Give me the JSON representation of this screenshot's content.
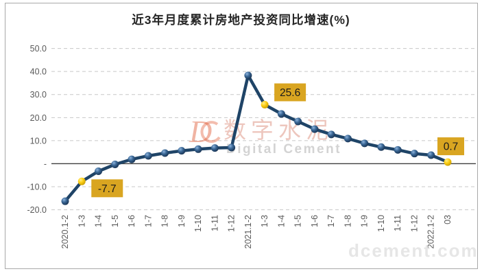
{
  "title": "近3年月度累计房地产投资同比增速(%)",
  "watermark": {
    "logo": "D",
    "cn": "数字水泥",
    "en": "Digital Cement",
    "site": "dcement.com"
  },
  "chart_data": {
    "type": "line",
    "title": "近3年月度累计房地产投资同比增速(%)",
    "xlabel": "",
    "ylabel": "",
    "categories": [
      "2020.1-2",
      "1-3",
      "1-4",
      "1-5",
      "1-6",
      "1-7",
      "1-8",
      "1-9",
      "1-10",
      "1-11",
      "1-12",
      "2021.1-2",
      "1-3",
      "1-4",
      "1-5",
      "1-6",
      "1-7",
      "1-8",
      "1-9",
      "1-10",
      "1-11",
      "1-12",
      "2022.1-2",
      "03"
    ],
    "values": [
      -16.3,
      -7.7,
      -3.3,
      -0.3,
      1.9,
      3.4,
      4.6,
      5.6,
      6.3,
      6.8,
      7.0,
      38.3,
      25.6,
      21.6,
      18.3,
      15.0,
      12.7,
      10.9,
      8.8,
      7.2,
      6.0,
      4.4,
      3.7,
      0.7
    ],
    "highlighted": [
      {
        "index": 1,
        "label": "-7.7"
      },
      {
        "index": 12,
        "label": "25.6"
      },
      {
        "index": 23,
        "label": "0.7"
      }
    ],
    "y_ticks": [
      {
        "label": "50.0",
        "value": 50
      },
      {
        "label": "40.0",
        "value": 40
      },
      {
        "label": "30.0",
        "value": 30
      },
      {
        "label": "20.0",
        "value": 20
      },
      {
        "label": "10.0",
        "value": 10
      },
      {
        "label": "-",
        "value": 0
      },
      {
        "label": "-10.0",
        "value": -10
      },
      {
        "label": "-20.0",
        "value": -20
      }
    ],
    "ylim": [
      -20,
      50
    ],
    "grid": "horizontal-dashed",
    "legend": "none",
    "colors": {
      "line": "#1f4467",
      "marker": "#2f5e91",
      "marker_highlight": "#ffd21e",
      "label_bg": "#d9a521",
      "label_text": "#1a1a1a",
      "axis_text": "#595959",
      "gridline": "#c8c8c8",
      "zero_line": "#3f3f3f",
      "border": "#a8a8a8",
      "title": "#262626",
      "watermark_orange": "#e05a35",
      "watermark_pink": "#dd8f7e",
      "watermark_gray": "#bcbcbc"
    }
  }
}
